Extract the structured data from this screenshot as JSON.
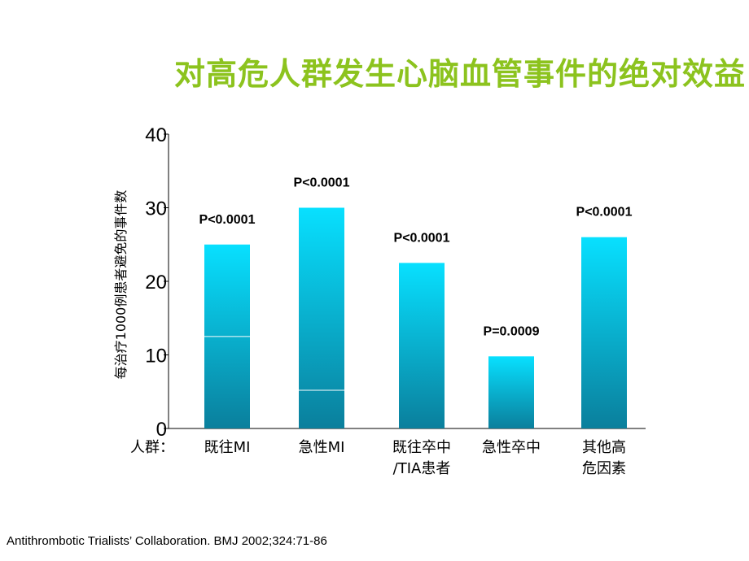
{
  "title": "对高危人群发生心脑血管事件的绝对效益",
  "citation": "Antithrombotic Trialists’ Collaboration. BMJ 2002;324:71-86",
  "colors": {
    "title": "#8cc31e",
    "bar_top": "#08e0ff",
    "bar_bottom": "#0a7f9c"
  },
  "chart_data": {
    "type": "bar",
    "ylabel": "每治疗1000例患者避免的事件数",
    "category_prefix": "人群：",
    "ylim": [
      0,
      40
    ],
    "yticks": [
      "0",
      "10",
      "20",
      "30",
      "40"
    ],
    "categories": [
      [
        "既往MI"
      ],
      [
        "急性MI"
      ],
      [
        "既往卒中",
        "/TIA患者"
      ],
      [
        "急性卒中"
      ],
      [
        "其他高",
        "危因素"
      ]
    ],
    "values": [
      25,
      30,
      22.5,
      9.8,
      26
    ],
    "inner_lines": [
      12.5,
      5.2,
      null,
      null,
      null
    ],
    "p_values": [
      "P<0.0001",
      "P<0.0001",
      "P<0.0001",
      "P=0.0009",
      "P<0.0001"
    ]
  }
}
